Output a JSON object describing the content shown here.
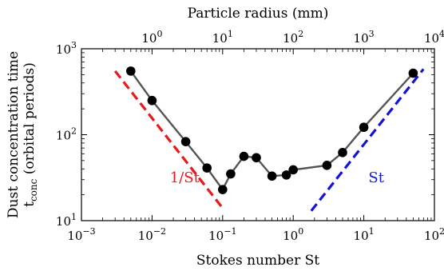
{
  "chart_data": {
    "type": "line",
    "title": "",
    "xlabel": "Stokes number St",
    "ylabel_line1": "Dust concentration time",
    "ylabel_line2": "(orbital periods)",
    "ylabel_symbol": "t",
    "ylabel_subscript": "conc",
    "x2label": "Particle radius (mm)",
    "xscale": "log",
    "yscale": "log",
    "x2scale": "log",
    "xlim": [
      0.001,
      100
    ],
    "ylim": [
      10,
      1000
    ],
    "x2lim": [
      0.1,
      10000
    ],
    "xticks": [
      {
        "base": "10",
        "exp": "−3"
      },
      {
        "base": "10",
        "exp": "−2"
      },
      {
        "base": "10",
        "exp": "−1"
      },
      {
        "base": "10",
        "exp": "0"
      },
      {
        "base": "10",
        "exp": "1"
      },
      {
        "base": "10",
        "exp": "2"
      }
    ],
    "yticks": [
      {
        "base": "10",
        "exp": "1"
      },
      {
        "base": "10",
        "exp": "2"
      },
      {
        "base": "10",
        "exp": "3"
      }
    ],
    "x2ticks": [
      {
        "base": "10",
        "exp": "0"
      },
      {
        "base": "10",
        "exp": "1"
      },
      {
        "base": "10",
        "exp": "2"
      },
      {
        "base": "10",
        "exp": "3"
      },
      {
        "base": "10",
        "exp": "4"
      }
    ],
    "series": [
      {
        "style": "solid-line-with-markers",
        "line_color": "#555555",
        "marker_color": "#000000",
        "x": [
          0.005,
          0.01,
          0.03,
          0.06,
          0.1,
          0.13,
          0.2,
          0.3,
          0.5,
          0.8,
          1.0,
          3.0,
          5.0,
          10.0,
          50.0
        ],
        "y": [
          550,
          250,
          83,
          41,
          23,
          35,
          56,
          54,
          33,
          34,
          39,
          44,
          62,
          122,
          520
        ]
      }
    ],
    "annotations": [
      {
        "text": "1/St",
        "color": "#e8181c",
        "style": "dashed",
        "x": [
          0.003,
          0.1
        ],
        "y": [
          550,
          14
        ]
      },
      {
        "text": "St",
        "color": "#1414d4",
        "style": "dashed",
        "x": [
          1.8,
          70
        ],
        "y": [
          13,
          580
        ]
      }
    ]
  }
}
